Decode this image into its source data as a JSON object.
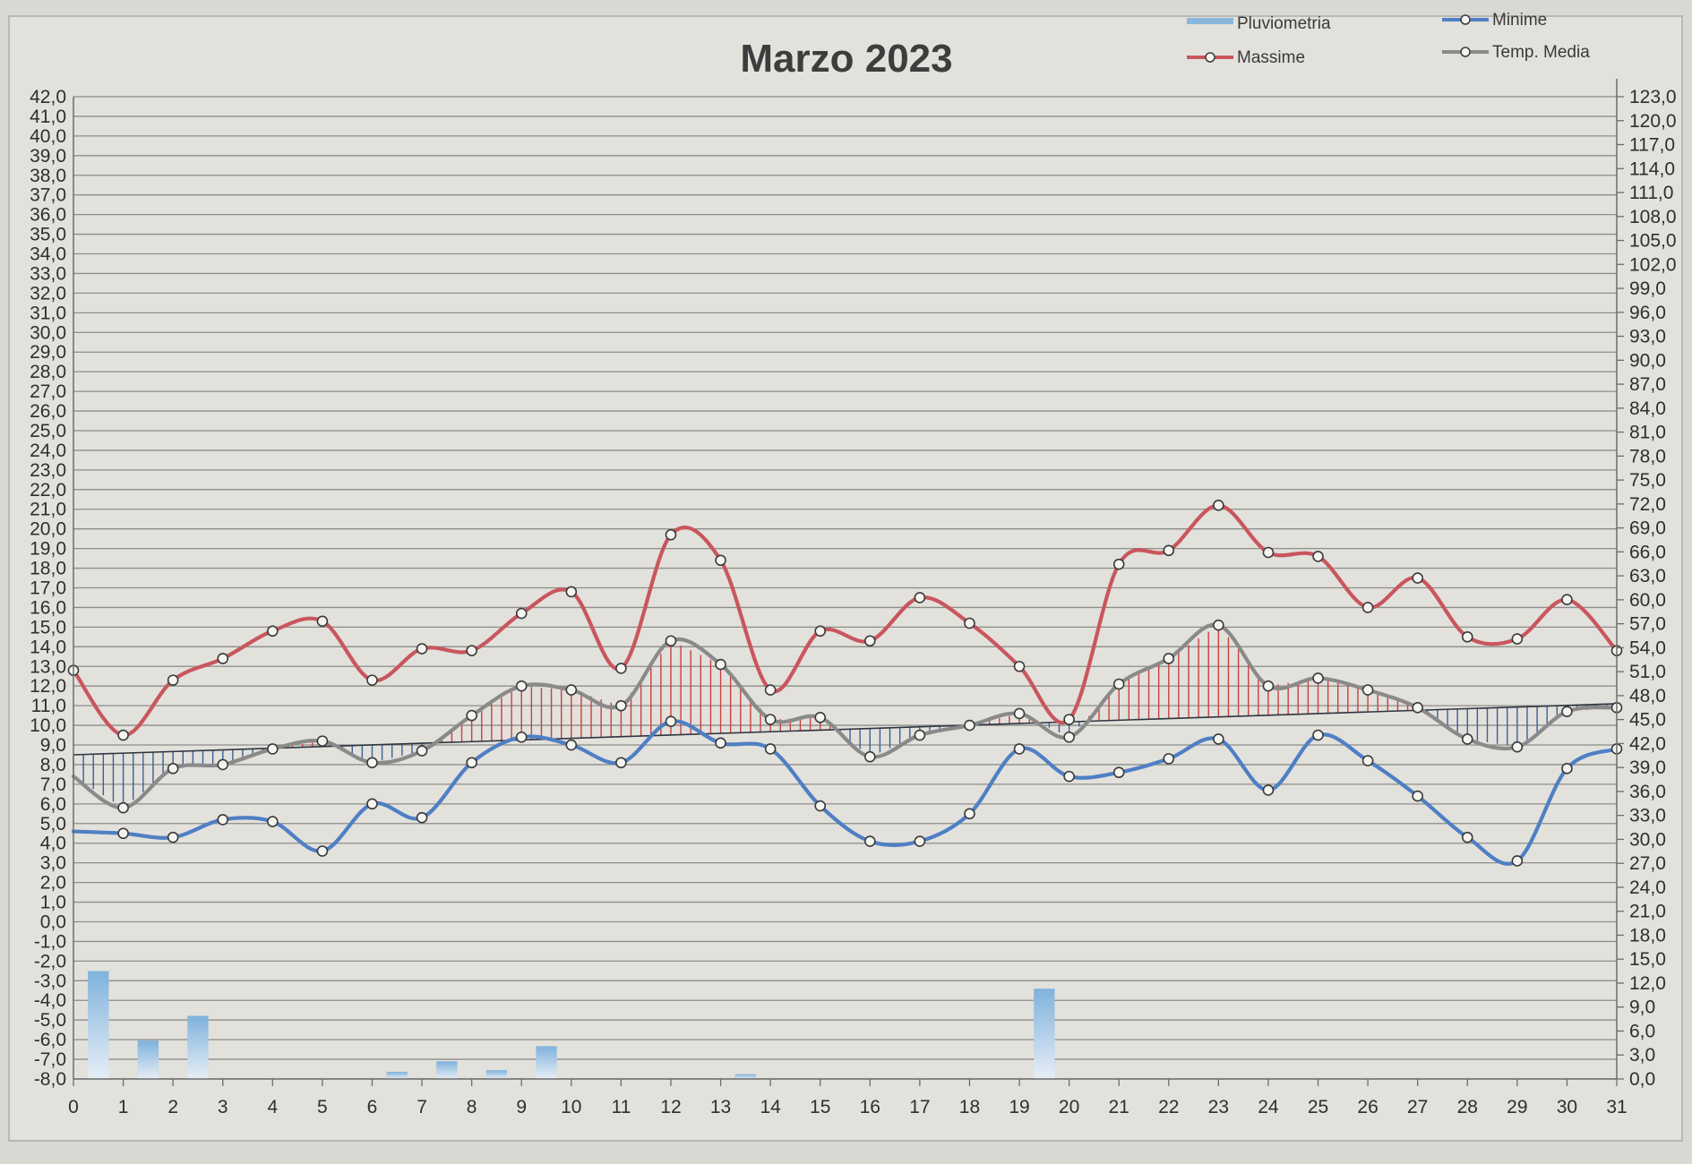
{
  "chart_data": {
    "type": "line",
    "title": "Marzo 2023",
    "legend": {
      "placement": "top-right",
      "items": [
        {
          "name": "Pluviometria",
          "color": "#8ab8dd",
          "marker": "bar"
        },
        {
          "name": "Minime",
          "color": "#4f7fc4",
          "marker": "line-circle"
        },
        {
          "name": "Massime",
          "color": "#c9565d",
          "marker": "line-circle"
        },
        {
          "name": "Temp. Media",
          "color": "#8a8a8a",
          "marker": "line-circle"
        }
      ]
    },
    "x": [
      0,
      1,
      2,
      3,
      4,
      5,
      6,
      7,
      8,
      9,
      10,
      11,
      12,
      13,
      14,
      15,
      16,
      17,
      18,
      19,
      20,
      21,
      22,
      23,
      24,
      25,
      26,
      27,
      28,
      29,
      30,
      31
    ],
    "x_ticks": [
      "0",
      "1",
      "2",
      "3",
      "4",
      "5",
      "6",
      "7",
      "8",
      "9",
      "10",
      "11",
      "12",
      "13",
      "14",
      "15",
      "16",
      "17",
      "18",
      "19",
      "20",
      "21",
      "22",
      "23",
      "24",
      "25",
      "26",
      "27",
      "28",
      "29",
      "30",
      "31"
    ],
    "y_left": {
      "min": -8,
      "max": 42,
      "step": 1,
      "ticks": [
        "42,0",
        "41,0",
        "40,0",
        "39,0",
        "38,0",
        "37,0",
        "36,0",
        "35,0",
        "34,0",
        "33,0",
        "32,0",
        "31,0",
        "30,0",
        "29,0",
        "28,0",
        "27,0",
        "26,0",
        "25,0",
        "24,0",
        "23,0",
        "22,0",
        "21,0",
        "20,0",
        "19,0",
        "18,0",
        "17,0",
        "16,0",
        "15,0",
        "14,0",
        "13,0",
        "12,0",
        "11,0",
        "10,0",
        "9,0",
        "8,0",
        "7,0",
        "6,0",
        "5,0",
        "4,0",
        "3,0",
        "2,0",
        "1,0",
        "0,0",
        "-1,0",
        "-2,0",
        "-3,0",
        "-4,0",
        "-5,0",
        "-6,0",
        "-7,0",
        "-8,0"
      ]
    },
    "y_right": {
      "min": 0,
      "max": 123,
      "step": 3,
      "ticks": [
        "123,0",
        "120,0",
        "117,0",
        "114,0",
        "111,0",
        "108,0",
        "105,0",
        "102,0",
        "99,0",
        "96,0",
        "93,0",
        "90,0",
        "87,0",
        "84,0",
        "81,0",
        "78,0",
        "75,0",
        "72,0",
        "69,0",
        "66,0",
        "63,0",
        "60,0",
        "57,0",
        "54,0",
        "51,0",
        "48,0",
        "45,0",
        "42,0",
        "39,0",
        "36,0",
        "33,0",
        "30,0",
        "27,0",
        "24,0",
        "21,0",
        "18,0",
        "15,0",
        "12,0",
        "9,0",
        "6,0",
        "3,0",
        "0,0"
      ]
    },
    "grid": true,
    "series": [
      {
        "name": "Massime",
        "axis": "left",
        "color": "#c9565d",
        "x": [
          0,
          1,
          2,
          3,
          4,
          5,
          6,
          7,
          8,
          9,
          10,
          11,
          12,
          13,
          14,
          15,
          16,
          17,
          18,
          19,
          20,
          21,
          22,
          23,
          24,
          25,
          26,
          27,
          28,
          29,
          30,
          31
        ],
        "values": [
          12.8,
          9.5,
          12.3,
          13.4,
          14.8,
          15.3,
          12.3,
          13.9,
          13.8,
          15.7,
          16.8,
          12.9,
          19.7,
          18.4,
          11.8,
          14.8,
          14.3,
          16.5,
          15.2,
          13.0,
          10.3,
          18.2,
          18.9,
          21.2,
          18.8,
          18.6,
          16.0,
          17.5,
          14.5,
          14.4,
          16.4,
          13.8
        ]
      },
      {
        "name": "Minime",
        "axis": "left",
        "color": "#4f7fc4",
        "x": [
          0,
          1,
          2,
          3,
          4,
          5,
          6,
          7,
          8,
          9,
          10,
          11,
          12,
          13,
          14,
          15,
          16,
          17,
          18,
          19,
          20,
          21,
          22,
          23,
          24,
          25,
          26,
          27,
          28,
          29,
          30,
          31
        ],
        "values": [
          4.6,
          4.5,
          4.3,
          5.2,
          5.1,
          3.6,
          6.0,
          5.3,
          8.1,
          9.4,
          9.0,
          8.1,
          10.2,
          9.1,
          8.8,
          5.9,
          4.1,
          4.1,
          5.5,
          8.8,
          7.4,
          7.6,
          8.3,
          9.3,
          6.7,
          9.5,
          8.2,
          6.4,
          4.3,
          3.1,
          7.8,
          8.8
        ]
      },
      {
        "name": "Temp. Media",
        "axis": "left",
        "color": "#8a8a8a",
        "x": [
          0,
          1,
          2,
          3,
          4,
          5,
          6,
          7,
          8,
          9,
          10,
          11,
          12,
          13,
          14,
          15,
          16,
          17,
          18,
          19,
          20,
          21,
          22,
          23,
          24,
          25,
          26,
          27,
          28,
          29,
          30,
          31
        ],
        "values": [
          7.4,
          5.8,
          7.8,
          8.0,
          8.8,
          9.2,
          8.1,
          8.7,
          10.5,
          12.0,
          11.8,
          11.0,
          14.3,
          13.1,
          10.3,
          10.4,
          8.4,
          9.5,
          10.0,
          10.6,
          9.4,
          12.1,
          13.4,
          15.1,
          12.0,
          12.4,
          11.8,
          10.9,
          9.3,
          8.9,
          10.7,
          10.9
        ]
      },
      {
        "name": "Pluviometria",
        "axis": "right",
        "type": "bar",
        "color": "#8ab8dd",
        "x": [
          0.5,
          1.5,
          2.5,
          6.5,
          7.5,
          8.5,
          9.5,
          13.5,
          19.5
        ],
        "values": [
          13.5,
          4.8,
          7.9,
          0.9,
          2.2,
          1.1,
          4.1,
          0.6,
          11.3
        ]
      }
    ],
    "trend": {
      "color": "#2f3540",
      "x": [
        0,
        31
      ],
      "values": [
        8.5,
        11.1
      ]
    }
  }
}
